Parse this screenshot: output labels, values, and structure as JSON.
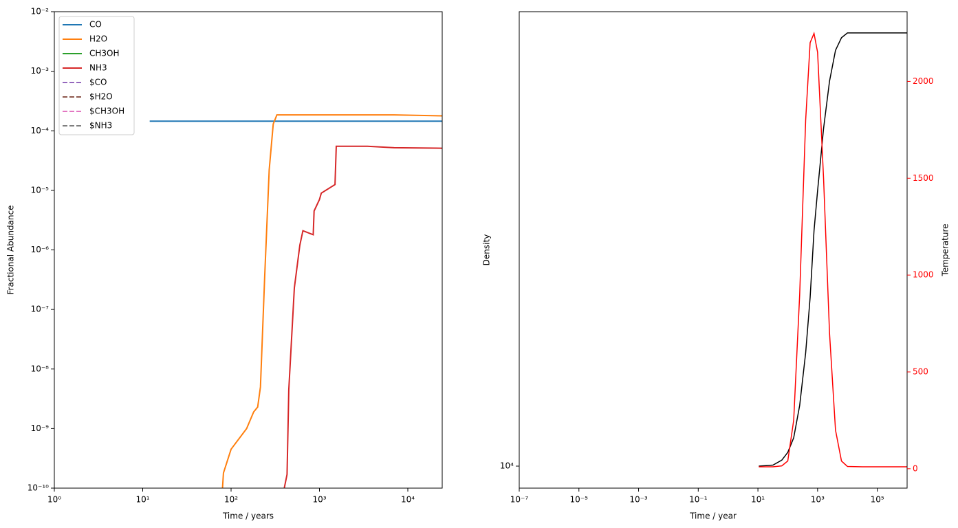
{
  "chart_data": [
    {
      "type": "line",
      "xlabel": "Time / years",
      "ylabel": "Fractional Abundance",
      "xscale": "log",
      "yscale": "log",
      "xlim": [
        1,
        24500
      ],
      "ylim": [
        1e-10,
        0.01
      ],
      "xticks": [
        {
          "value": 1,
          "label": "10⁰"
        },
        {
          "value": 10,
          "label": "10¹"
        },
        {
          "value": 100,
          "label": "10²"
        },
        {
          "value": 1000,
          "label": "10³"
        },
        {
          "value": 10000,
          "label": "10⁴"
        }
      ],
      "yticks": [
        {
          "value": 1e-10,
          "label": "10⁻¹⁰"
        },
        {
          "value": 1e-09,
          "label": "10⁻⁹"
        },
        {
          "value": 1e-08,
          "label": "10⁻⁸"
        },
        {
          "value": 1e-07,
          "label": "10⁻⁷"
        },
        {
          "value": 1e-06,
          "label": "10⁻⁶"
        },
        {
          "value": 1e-05,
          "label": "10⁻⁵"
        },
        {
          "value": 0.0001,
          "label": "10⁻⁴"
        },
        {
          "value": 0.001,
          "label": "10⁻³"
        },
        {
          "value": 0.01,
          "label": "10⁻²"
        }
      ],
      "legend": "upper left",
      "x": [
        12,
        80,
        82,
        100,
        150,
        180,
        200,
        215,
        240,
        270,
        300,
        330,
        400,
        430,
        450,
        520,
        600,
        650,
        850,
        870,
        1000,
        1050,
        1500,
        1550,
        3500,
        7000,
        24500
      ],
      "series": [
        {
          "name": "CO",
          "color": "#1f77b4",
          "linestyle": "solid",
          "values": [
            0.000145,
            0.000145,
            0.000145,
            0.000145,
            0.000145,
            0.000145,
            0.000145,
            0.000145,
            0.000145,
            0.000145,
            0.000145,
            0.000145,
            0.000145,
            0.000145,
            0.000145,
            0.000145,
            0.000145,
            0.000145,
            0.000145,
            0.000145,
            0.000145,
            0.000145,
            0.000145,
            0.000145,
            0.000145,
            0.000145,
            0.000145
          ]
        },
        {
          "name": "H2O",
          "color": "#ff7f0e",
          "linestyle": "solid",
          "values": [
            null,
            1e-10,
            1.8e-10,
            4.5e-10,
            1e-09,
            1.9e-09,
            2.3e-09,
            5e-09,
            3.5e-07,
            2.2e-05,
            0.00013,
            0.000185,
            0.000185,
            0.000185,
            0.000185,
            0.000185,
            0.000185,
            0.000185,
            0.000185,
            0.000185,
            0.000185,
            0.000185,
            0.000185,
            0.000185,
            0.000185,
            0.000185,
            0.000178
          ]
        },
        {
          "name": "CH3OH",
          "color": "#2ca02c",
          "linestyle": "solid",
          "values": [
            null,
            null,
            null,
            null,
            null,
            null,
            null,
            null,
            null,
            null,
            null,
            null,
            null,
            null,
            null,
            null,
            null,
            null,
            null,
            null,
            null,
            null,
            null,
            null,
            null,
            null,
            null
          ]
        },
        {
          "name": "NH3",
          "color": "#d62728",
          "linestyle": "solid",
          "values": [
            null,
            null,
            null,
            null,
            null,
            null,
            null,
            null,
            null,
            null,
            null,
            null,
            1e-10,
            1.7e-10,
            4.5e-09,
            2.3e-07,
            1.2e-06,
            2.1e-06,
            1.8e-06,
            4.5e-06,
            7e-06,
            9e-06,
            1.25e-05,
            5.5e-05,
            5.5e-05,
            5.2e-05,
            5.1e-05
          ]
        },
        {
          "name": "$CO",
          "color": "#9467bd",
          "linestyle": "dashed",
          "values": [
            null,
            null,
            null,
            null,
            null,
            null,
            null,
            null,
            null,
            null,
            null,
            null,
            null,
            null,
            null,
            null,
            null,
            null,
            null,
            null,
            null,
            null,
            null,
            null,
            null,
            null,
            null
          ]
        },
        {
          "name": "$H2O",
          "color": "#8c564b",
          "linestyle": "dashed",
          "values": [
            null,
            null,
            null,
            null,
            null,
            null,
            null,
            null,
            null,
            null,
            null,
            null,
            null,
            null,
            null,
            null,
            null,
            null,
            null,
            null,
            null,
            null,
            null,
            null,
            null,
            null,
            null
          ]
        },
        {
          "name": "$CH3OH",
          "color": "#e377c2",
          "linestyle": "dashed",
          "values": [
            null,
            null,
            null,
            null,
            null,
            null,
            null,
            null,
            null,
            null,
            null,
            null,
            null,
            null,
            null,
            null,
            null,
            null,
            null,
            null,
            null,
            null,
            null,
            null,
            null,
            null,
            null
          ]
        },
        {
          "name": "$NH3",
          "color": "#7f7f7f",
          "linestyle": "dashed",
          "values": [
            null,
            null,
            null,
            null,
            null,
            null,
            null,
            null,
            null,
            null,
            null,
            null,
            null,
            null,
            null,
            null,
            null,
            null,
            null,
            null,
            null,
            null,
            null,
            null,
            null,
            null,
            null
          ]
        }
      ]
    },
    {
      "type": "line",
      "xlabel": "Time / year",
      "ylabel": "Density",
      "y2label": "Temperature",
      "xscale": "log",
      "yscale": "log",
      "y2scale": "linear",
      "y2color": "#ff0000",
      "xlim": [
        1e-07,
        1000000
      ],
      "ylim": [
        8970,
        94400
      ],
      "y2lim": [
        -100,
        2360
      ],
      "xticks": [
        {
          "value": 1e-07,
          "label": "10⁻⁷"
        },
        {
          "value": 1e-05,
          "label": "10⁻⁵"
        },
        {
          "value": 0.001,
          "label": "10⁻³"
        },
        {
          "value": 0.1,
          "label": "10⁻¹"
        },
        {
          "value": 10,
          "label": "10¹"
        },
        {
          "value": 1000,
          "label": "10³"
        },
        {
          "value": 100000,
          "label": "10⁵"
        }
      ],
      "yticks": [
        {
          "value": 10000,
          "label": "10⁴"
        }
      ],
      "y2ticks": [
        0,
        500,
        1000,
        1500,
        2000
      ],
      "x": [
        10.7,
        32,
        63,
        100,
        158,
        251,
        398,
        562,
        759,
        1000,
        1585,
        2512,
        3981,
        6310,
        10000,
        31623,
        1000000
      ],
      "series": [
        {
          "name": "Density",
          "color": "#000000",
          "values": [
            10000,
            10050,
            10300,
            10700,
            11500,
            13500,
            17500,
            23000,
            32000,
            39000,
            53000,
            67000,
            78000,
            83000,
            85000,
            85000,
            85000
          ]
        },
        {
          "name": "Temperature",
          "color": "#ff0000",
          "axis": "y2",
          "values": [
            10,
            10,
            15,
            40,
            250,
            900,
            1800,
            2200,
            2248,
            2150,
            1500,
            700,
            200,
            40,
            12,
            10,
            10
          ]
        }
      ]
    }
  ]
}
